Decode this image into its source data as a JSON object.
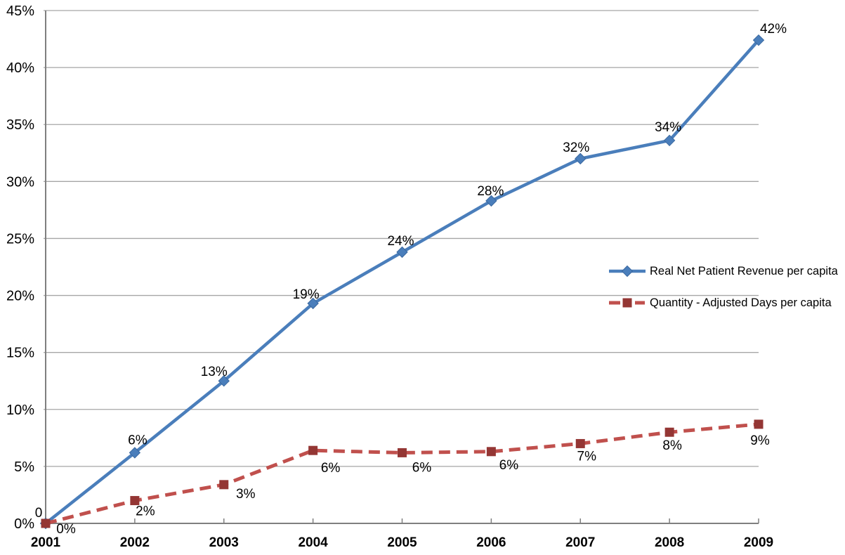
{
  "chart_data": {
    "type": "line",
    "categories": [
      "2001",
      "2002",
      "2003",
      "2004",
      "2005",
      "2006",
      "2007",
      "2008",
      "2009"
    ],
    "series": [
      {
        "name": "Real Net Patient Revenue per capita",
        "values": [
          0,
          6.2,
          12.5,
          19.3,
          23.8,
          28.3,
          32.0,
          33.6,
          42.4
        ],
        "point_labels": [
          "0",
          "6%",
          "13%",
          "19%",
          "24%",
          "28%",
          "32%",
          "34%",
          "42%"
        ],
        "color": "#4A7EBB",
        "marker": "diamond",
        "marker_color": "#4A7EBB",
        "line_style": "solid"
      },
      {
        "name": "Quantity - Adjusted Days per capita",
        "values": [
          0,
          2.0,
          3.4,
          6.4,
          6.2,
          6.3,
          7.0,
          8.0,
          8.7
        ],
        "point_labels": [
          "0%",
          "2%",
          "3%",
          "6%",
          "6%",
          "6%",
          "7%",
          "8%",
          "9%"
        ],
        "color": "#C0504D",
        "marker": "square",
        "marker_color": "#943634",
        "line_style": "dashed"
      }
    ],
    "y_ticks": [
      "0%",
      "5%",
      "10%",
      "15%",
      "20%",
      "25%",
      "30%",
      "35%",
      "40%",
      "45%"
    ],
    "ylim": [
      0,
      45
    ],
    "y_tick_step": 5,
    "grid": true,
    "legend_position": "middle-right",
    "title": "",
    "xlabel": "",
    "ylabel": ""
  },
  "colors": {
    "grid": "#A6A6A6",
    "axis": "#7F7F7F",
    "text": "#000000",
    "background": "#FFFFFF"
  }
}
